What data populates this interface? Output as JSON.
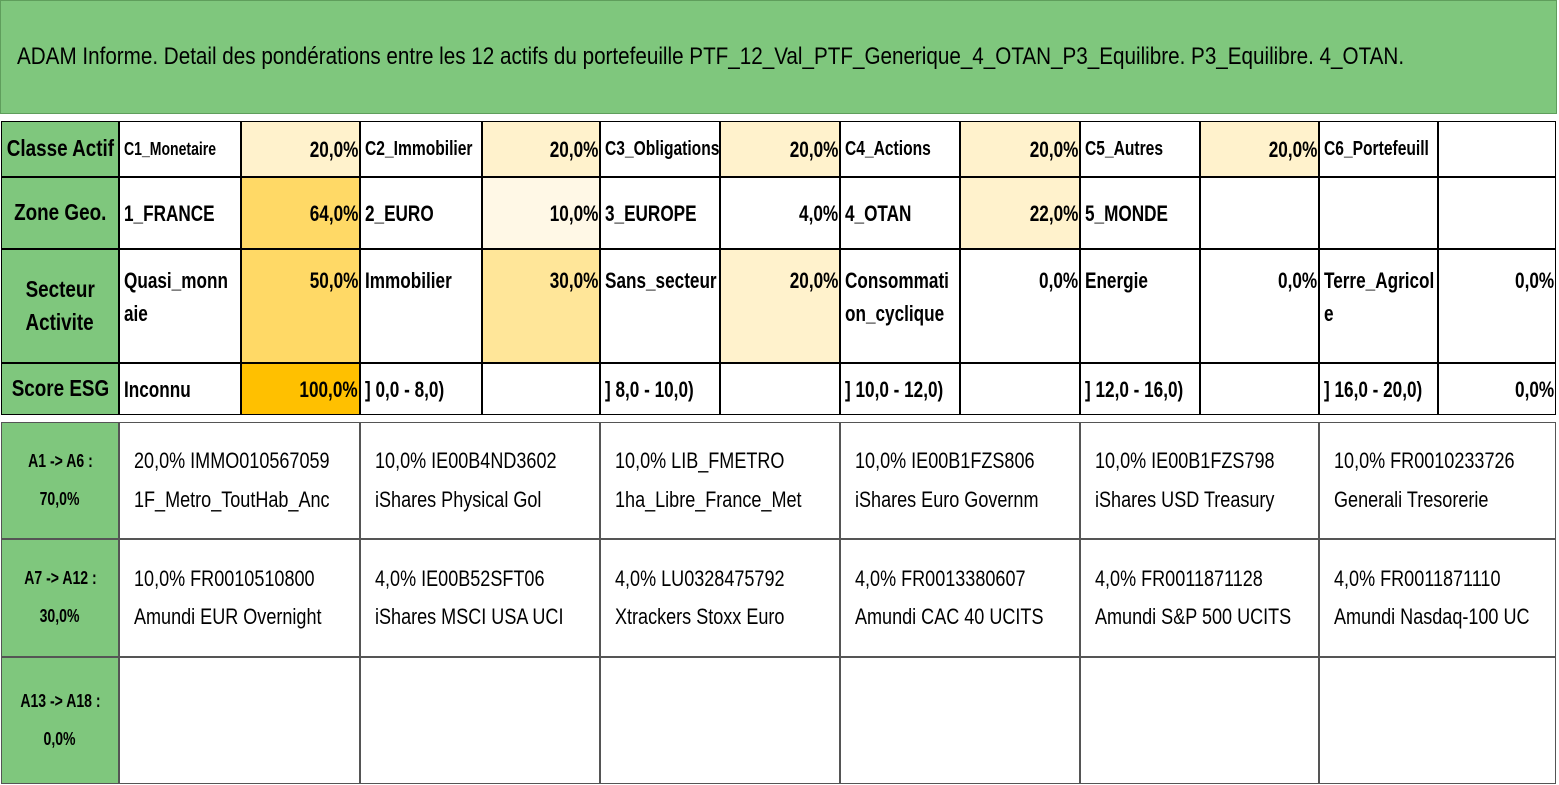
{
  "title": "ADAM Informe. Detail des pondérations entre les 12 actifs du portefeuille PTF_12_Val_PTF_Generique_4_OTAN_P3_Equilibre. P3_Equilibre. 4_OTAN.",
  "colors": {
    "label_green": "#7fc77d",
    "heat_strong": "#ffc000",
    "heat_high": "#ffd966",
    "heat_mid": "#ffe699",
    "heat_low": "#fff2cc",
    "heat_faint": "#fff8e6"
  },
  "rows": [
    {
      "label": "Classe Actif",
      "items": [
        {
          "name": "C1_Monetaire",
          "value": "20,0%"
        },
        {
          "name": "C2_Immobilier",
          "value": "20,0%"
        },
        {
          "name": "C3_Obligations",
          "value": "20,0%"
        },
        {
          "name": "C4_Actions",
          "value": "20,0%"
        },
        {
          "name": "C5_Autres",
          "value": "20,0%"
        },
        {
          "name": "C6_Portefeuill",
          "value": ""
        }
      ]
    },
    {
      "label": "Zone Geo.",
      "items": [
        {
          "name": "1_FRANCE",
          "value": "64,0%"
        },
        {
          "name": "2_EURO",
          "value": "10,0%"
        },
        {
          "name": "3_EUROPE",
          "value": "4,0%"
        },
        {
          "name": "4_OTAN",
          "value": "22,0%"
        },
        {
          "name": "5_MONDE",
          "value": ""
        },
        {
          "name": "",
          "value": ""
        }
      ]
    },
    {
      "label_line1": "Secteur",
      "label_line2": "Activite",
      "items": [
        {
          "name_line1": "Quasi_monn",
          "name_line2": "aie",
          "value": "50,0%"
        },
        {
          "name_line1": "Immobilier",
          "name_line2": "",
          "value": "30,0%"
        },
        {
          "name_line1": "Sans_secteur",
          "name_line2": "",
          "value": "20,0%"
        },
        {
          "name_line1": "Consommati",
          "name_line2": "on_cyclique",
          "value": "0,0%"
        },
        {
          "name_line1": "Energie",
          "name_line2": "",
          "value": "0,0%"
        },
        {
          "name_line1": "Terre_Agricol",
          "name_line2": "e",
          "value": "0,0%"
        }
      ]
    },
    {
      "label": "Score ESG",
      "items": [
        {
          "name": "Inconnu",
          "value": "100,0%"
        },
        {
          "name": "] 0,0 - 8,0)",
          "value": ""
        },
        {
          "name": "] 8,0 - 10,0)",
          "value": ""
        },
        {
          "name": "] 10,0 - 12,0)",
          "value": ""
        },
        {
          "name": "] 12,0 - 16,0)",
          "value": ""
        },
        {
          "name": "] 16,0 - 20,0)",
          "value": "0,0%"
        }
      ]
    }
  ],
  "asset_rows": [
    {
      "label_line1": "A1 -> A6 :",
      "label_line2": "70,0%",
      "assets": [
        {
          "line1": "20,0% IMMO010567059",
          "line2": "1F_Metro_ToutHab_Anc"
        },
        {
          "line1": "10,0% IE00B4ND3602",
          "line2": "iShares Physical Gol"
        },
        {
          "line1": "10,0% LIB_FMETRO",
          "line2": "1ha_Libre_France_Met"
        },
        {
          "line1": "10,0% IE00B1FZS806",
          "line2": "iShares Euro Governm"
        },
        {
          "line1": "10,0% IE00B1FZS798",
          "line2": "iShares USD Treasury"
        },
        {
          "line1": "10,0% FR0010233726",
          "line2": "Generali Tresorerie"
        }
      ]
    },
    {
      "label_line1": "A7 -> A12 :",
      "label_line2": "30,0%",
      "assets": [
        {
          "line1": "10,0% FR0010510800",
          "line2": "Amundi EUR Overnight"
        },
        {
          "line1": "4,0% IE00B52SFT06",
          "line2": "iShares MSCI USA UCI"
        },
        {
          "line1": "4,0% LU0328475792",
          "line2": "Xtrackers Stoxx Euro"
        },
        {
          "line1": "4,0% FR0013380607",
          "line2": "Amundi CAC 40 UCITS"
        },
        {
          "line1": "4,0% FR0011871128",
          "line2": "Amundi S&P 500 UCITS"
        },
        {
          "line1": "4,0% FR0011871110",
          "line2": "Amundi Nasdaq-100 UC"
        }
      ]
    },
    {
      "label_line1": "A13 -> A18 :",
      "label_line2": "0,0%",
      "assets": [
        {
          "line1": "",
          "line2": ""
        },
        {
          "line1": "",
          "line2": ""
        },
        {
          "line1": "",
          "line2": ""
        },
        {
          "line1": "",
          "line2": ""
        },
        {
          "line1": "",
          "line2": ""
        },
        {
          "line1": "",
          "line2": ""
        }
      ]
    }
  ]
}
